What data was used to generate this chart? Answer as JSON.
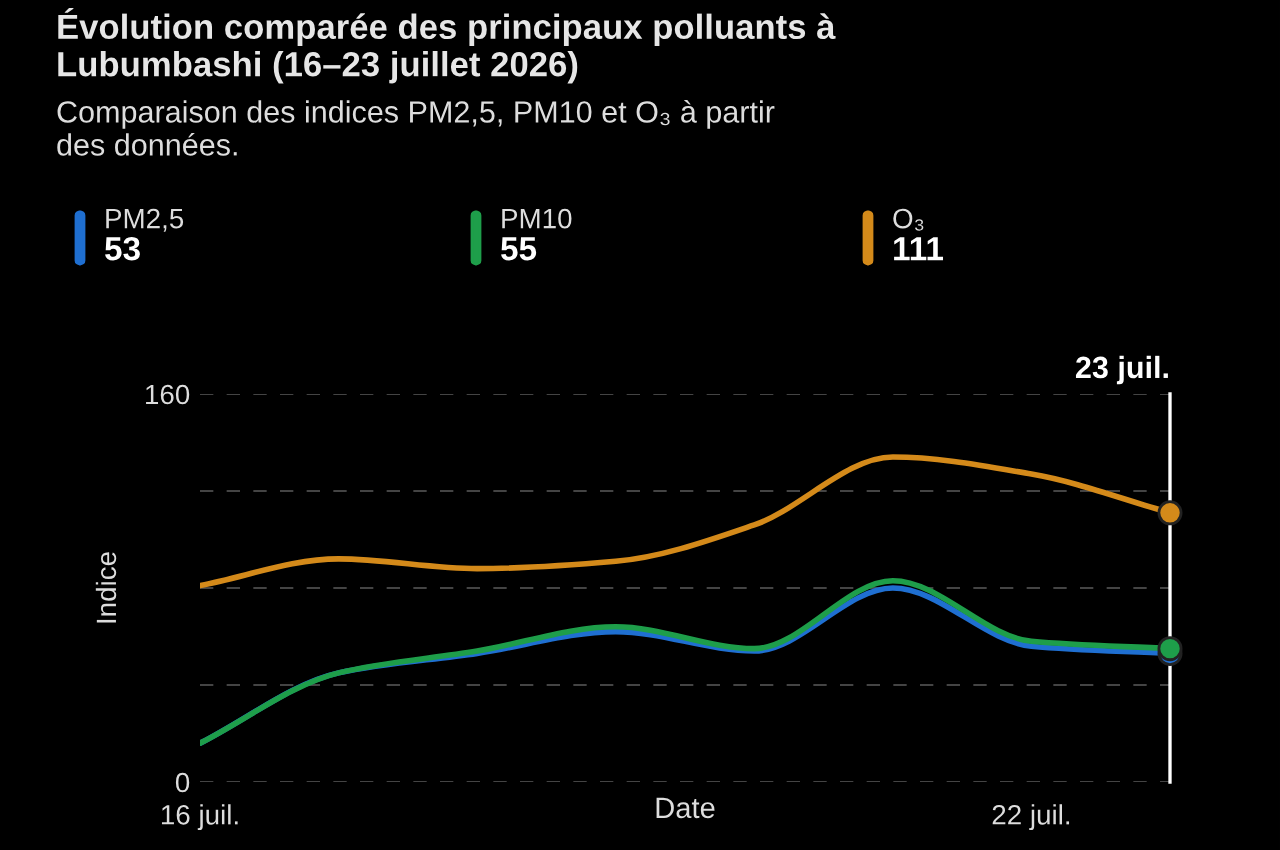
{
  "chart_data": {
    "type": "line",
    "title": "Évolution comparée des principaux polluants à\nLubumbashi (16–23 juillet 2026)",
    "subtitle": "Comparaison des indices PM2,5, PM10 et O₃ à partir\ndes données.",
    "xlabel": "Date",
    "ylabel": "Indice",
    "x": [
      "2026-07-16",
      "2026-07-17",
      "2026-07-18",
      "2026-07-19",
      "2026-07-20",
      "2026-07-21",
      "2026-07-22",
      "2026-07-23"
    ],
    "series": [
      {
        "name": "PM2,5",
        "color": "#1f6fd1",
        "values": [
          16,
          45,
          53,
          62,
          54,
          80,
          56,
          53
        ]
      },
      {
        "name": "PM10",
        "color": "#1e9e4a",
        "values": [
          16,
          45,
          54,
          64,
          55,
          83,
          58,
          55
        ]
      },
      {
        "name": "O₃",
        "color": "#d48a1a",
        "values": [
          81,
          92,
          88,
          91,
          106,
          134,
          127,
          111
        ]
      }
    ],
    "annotations": [
      "53",
      "55",
      "111"
    ],
    "xlim": [
      "2026-07-16",
      "2026-07-23"
    ],
    "xticks": [
      {
        "value": "2026-07-16",
        "label": "16 juil."
      },
      {
        "value": "2026-07-22",
        "label": "22 juil."
      }
    ],
    "ylim": [
      0,
      160
    ],
    "yticks": [
      0,
      {
        "value": 40,
        "label": null
      },
      {
        "value": 80,
        "label": null
      },
      {
        "value": 120,
        "label": null
      },
      160
    ],
    "ref_lines": [
      {
        "axis": "x",
        "value": "2026-07-23",
        "label": "23 juil.",
        "color": "#ffffff"
      }
    ],
    "grid": "y",
    "legend": "top",
    "marker": "none",
    "line_style": "solid"
  }
}
